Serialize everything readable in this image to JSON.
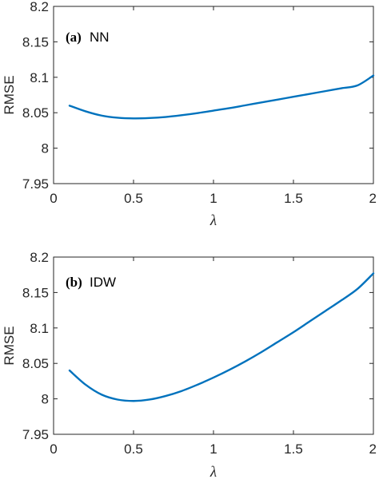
{
  "chart_data": [
    {
      "type": "line",
      "panel_letter": "(a)",
      "panel_name": "NN",
      "xlabel": "λ",
      "ylabel": "RMSE",
      "xlim": [
        0,
        2
      ],
      "ylim": [
        7.95,
        8.2
      ],
      "xticks": [
        0,
        0.5,
        1,
        1.5,
        2
      ],
      "xtick_labels": [
        "0",
        "0.5",
        "1",
        "1.5",
        "2"
      ],
      "yticks": [
        7.95,
        8,
        8.05,
        8.1,
        8.15,
        8.2
      ],
      "ytick_labels": [
        "7.95",
        "8",
        "8.05",
        "8.1",
        "8.15",
        "8.2"
      ],
      "grid": false,
      "line_color": "#0072bd",
      "series": [
        {
          "x": [
            0.1,
            0.2,
            0.3,
            0.4,
            0.5,
            0.6,
            0.7,
            0.8,
            0.9,
            1.0,
            1.1,
            1.2,
            1.3,
            1.4,
            1.5,
            1.6,
            1.7,
            1.8,
            1.9,
            2.0
          ],
          "y": [
            8.06,
            8.052,
            8.046,
            8.043,
            8.042,
            8.0425,
            8.044,
            8.0465,
            8.0495,
            8.053,
            8.0565,
            8.0605,
            8.0645,
            8.0685,
            8.0725,
            8.0765,
            8.0805,
            8.0845,
            8.0885,
            8.1025
          ]
        }
      ]
    },
    {
      "type": "line",
      "panel_letter": "(b)",
      "panel_name": "IDW",
      "xlabel": "λ",
      "ylabel": "RMSE",
      "xlim": [
        0,
        2
      ],
      "ylim": [
        7.95,
        8.2
      ],
      "xticks": [
        0,
        0.5,
        1,
        1.5,
        2
      ],
      "xtick_labels": [
        "0",
        "0.5",
        "1",
        "1.5",
        "2"
      ],
      "yticks": [
        7.95,
        8,
        8.05,
        8.1,
        8.15,
        8.2
      ],
      "ytick_labels": [
        "7.95",
        "8",
        "8.05",
        "8.1",
        "8.15",
        "8.2"
      ],
      "grid": false,
      "line_color": "#0072bd",
      "series": [
        {
          "x": [
            0.1,
            0.2,
            0.3,
            0.4,
            0.5,
            0.6,
            0.7,
            0.8,
            0.9,
            1.0,
            1.1,
            1.2,
            1.3,
            1.4,
            1.5,
            1.6,
            1.7,
            1.8,
            1.9,
            2.0
          ],
          "y": [
            8.04,
            8.02,
            8.006,
            7.999,
            7.997,
            7.999,
            8.004,
            8.011,
            8.02,
            8.03,
            8.041,
            8.053,
            8.066,
            8.08,
            8.094,
            8.109,
            8.124,
            8.139,
            8.155,
            8.177
          ]
        }
      ]
    }
  ]
}
